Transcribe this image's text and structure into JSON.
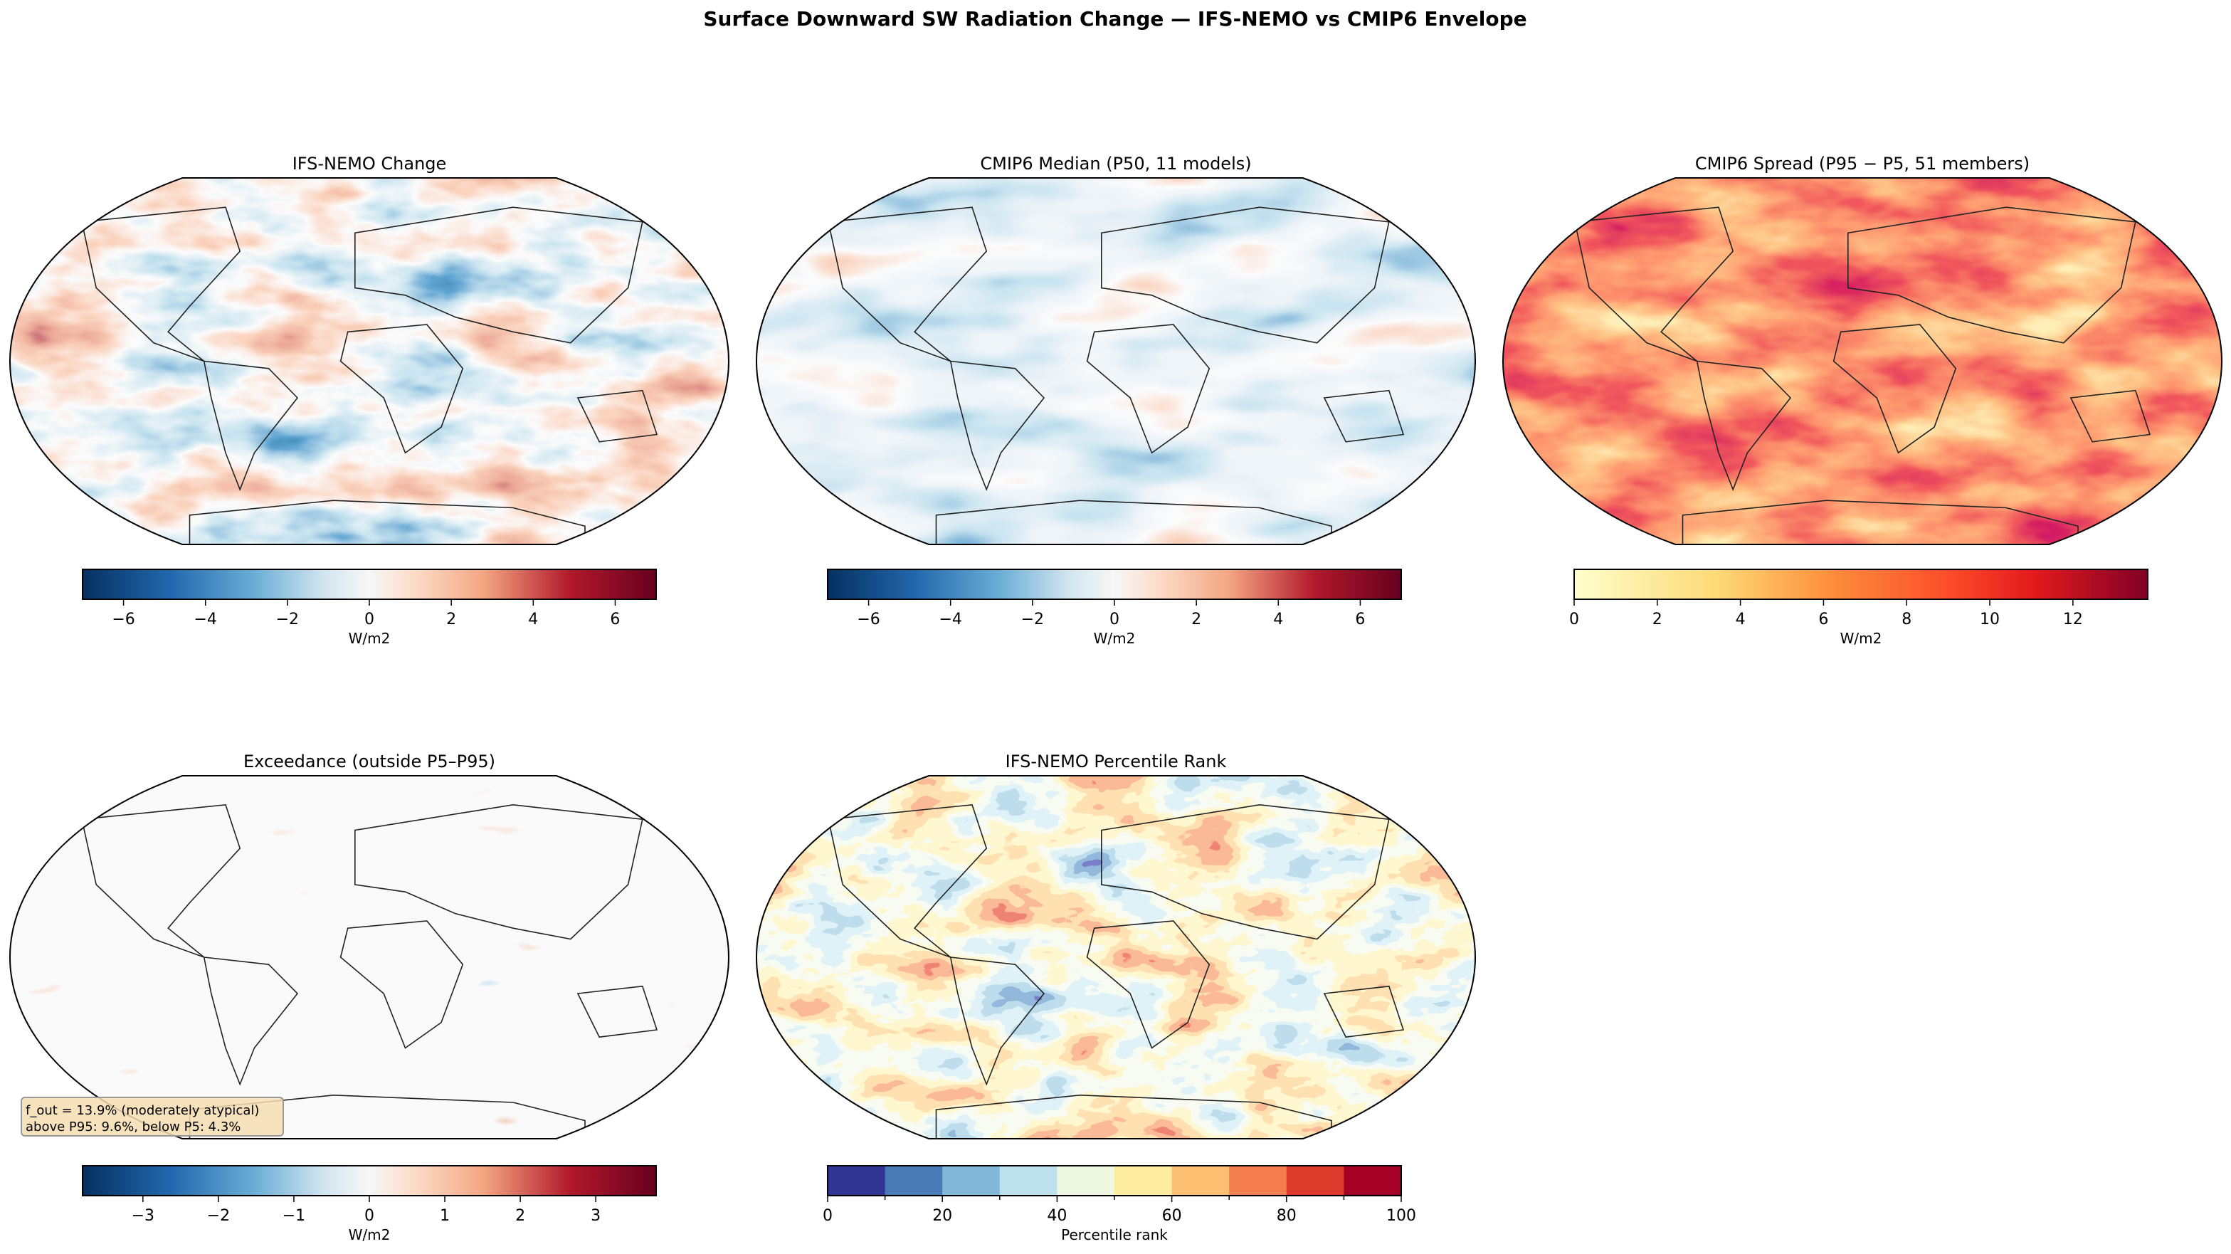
{
  "figure": {
    "title": "Surface Downward SW Radiation Change — IFS-NEMO vs CMIP6 Envelope"
  },
  "chart_data": [
    {
      "type": "heatmap",
      "title": "IFS-NEMO Change",
      "projection": "Robinson",
      "colormap": "RdBu_r",
      "colorbar": {
        "label": "W/m2",
        "range": [
          -7,
          7
        ],
        "ticks": [
          -6,
          -4,
          -2,
          0,
          2,
          4,
          6
        ],
        "tick_labels": [
          "−6",
          "−4",
          "−2",
          "0",
          "2",
          "4",
          "6"
        ]
      }
    },
    {
      "type": "heatmap",
      "title": "CMIP6 Median (P50, 11 models)",
      "projection": "Robinson",
      "colormap": "RdBu_r",
      "colorbar": {
        "label": "W/m2",
        "range": [
          -7,
          7
        ],
        "ticks": [
          -6,
          -4,
          -2,
          0,
          2,
          4,
          6
        ],
        "tick_labels": [
          "−6",
          "−4",
          "−2",
          "0",
          "2",
          "4",
          "6"
        ]
      }
    },
    {
      "type": "heatmap",
      "title": "CMIP6 Spread (P95 − P5, 51 members)",
      "projection": "Robinson",
      "colormap": "YlOrRd",
      "colorbar": {
        "label": "W/m2",
        "range": [
          0,
          13.8
        ],
        "ticks": [
          0,
          2,
          4,
          6,
          8,
          10,
          12
        ],
        "tick_labels": [
          "0",
          "2",
          "4",
          "6",
          "8",
          "10",
          "12"
        ]
      }
    },
    {
      "type": "heatmap",
      "title": "Exceedance (outside P5–P95)",
      "projection": "Robinson",
      "colormap": "RdBu_r",
      "colorbar": {
        "label": "W/m2",
        "range": [
          -3.8,
          3.8
        ],
        "ticks": [
          -3,
          -2,
          -1,
          0,
          1,
          2,
          3
        ],
        "tick_labels": [
          "−3",
          "−2",
          "−1",
          "0",
          "1",
          "2",
          "3"
        ]
      },
      "annotation": {
        "line1": "f_out = 13.9% (moderately atypical)",
        "line2": "above P95: 9.6%, below P5: 4.3%"
      }
    },
    {
      "type": "heatmap",
      "title": "IFS-NEMO Percentile Rank",
      "projection": "Robinson",
      "colormap": "RdYlBu_r (10 bins)",
      "colorbar": {
        "label": "Percentile rank",
        "range": [
          0,
          100
        ],
        "ticks": [
          0,
          20,
          40,
          60,
          80,
          100
        ],
        "tick_labels": [
          "0",
          "20",
          "40",
          "60",
          "80",
          "100"
        ],
        "bin_colors": [
          "#313695",
          "#4a7bb7",
          "#82b8d7",
          "#bde2ee",
          "#eef7e0",
          "#feeda1",
          "#fdbf71",
          "#f57e4e",
          "#dc3a2b",
          "#a50026"
        ]
      }
    }
  ]
}
